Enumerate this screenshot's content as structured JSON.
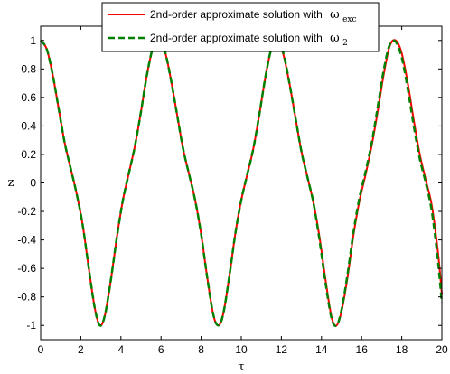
{
  "chart_data": {
    "type": "line",
    "title": "",
    "xlabel": "τ",
    "ylabel": "z",
    "xlim": [
      0,
      20
    ],
    "ylim": [
      -1.1,
      1.1
    ],
    "xticks": [
      "0",
      "2",
      "4",
      "6",
      "8",
      "10",
      "12",
      "14",
      "16",
      "18",
      "20"
    ],
    "yticks": [
      "-1",
      "-0.8",
      "-0.6",
      "-0.4",
      "-0.2",
      "0",
      "0.2",
      "0.4",
      "0.6",
      "0.8",
      "1"
    ],
    "grid": false,
    "legend_position": "top-center",
    "series": [
      {
        "name": "2nd-order approximate solution with",
        "symbol": "ω",
        "subscript": "exc",
        "color": "#ff0000",
        "style": "solid",
        "x": [
          0,
          0.3,
          0.6,
          0.9,
          1.2,
          1.5,
          1.8,
          2.1,
          2.4,
          2.7,
          2.95,
          3.2,
          3.5,
          3.8,
          4.1,
          4.4,
          4.7,
          5.0,
          5.3,
          5.6,
          5.9,
          6.2,
          6.5,
          6.8,
          7.1,
          7.4,
          7.7,
          8.0,
          8.3,
          8.6,
          8.85,
          9.1,
          9.4,
          9.7,
          10.0,
          10.3,
          10.6,
          10.9,
          11.2,
          11.5,
          11.8,
          12.1,
          12.4,
          12.7,
          13.0,
          13.3,
          13.6,
          13.9,
          14.2,
          14.5,
          14.75,
          15.0,
          15.3,
          15.6,
          15.9,
          16.2,
          16.5,
          16.8,
          17.1,
          17.4,
          17.7,
          18.0,
          18.3,
          18.6,
          18.9,
          19.2,
          19.5,
          19.8,
          20.0
        ],
        "y": [
          1.0,
          0.94,
          0.76,
          0.52,
          0.28,
          0.1,
          -0.08,
          -0.3,
          -0.6,
          -0.88,
          -1.0,
          -0.93,
          -0.68,
          -0.38,
          -0.12,
          0.07,
          0.26,
          0.5,
          0.76,
          0.95,
          1.0,
          0.92,
          0.72,
          0.48,
          0.24,
          0.06,
          -0.12,
          -0.36,
          -0.66,
          -0.92,
          -1.0,
          -0.92,
          -0.66,
          -0.36,
          -0.12,
          0.06,
          0.24,
          0.48,
          0.74,
          0.94,
          1.0,
          0.9,
          0.7,
          0.46,
          0.22,
          0.04,
          -0.14,
          -0.38,
          -0.68,
          -0.94,
          -1.0,
          -0.9,
          -0.66,
          -0.36,
          -0.12,
          0.06,
          0.26,
          0.5,
          0.76,
          0.96,
          1.0,
          0.91,
          0.7,
          0.44,
          0.2,
          0.02,
          -0.16,
          -0.48,
          -0.78
        ]
      },
      {
        "name": "2nd-order approximate solution with",
        "symbol": "ω",
        "subscript": "2",
        "color": "#008000",
        "style": "dashed",
        "x": [
          0,
          0.3,
          0.6,
          0.9,
          1.2,
          1.5,
          1.8,
          2.1,
          2.4,
          2.7,
          2.95,
          3.2,
          3.5,
          3.8,
          4.1,
          4.4,
          4.7,
          5.0,
          5.3,
          5.6,
          5.9,
          6.2,
          6.5,
          6.8,
          7.1,
          7.4,
          7.7,
          8.0,
          8.3,
          8.6,
          8.85,
          9.1,
          9.4,
          9.7,
          10.0,
          10.3,
          10.6,
          10.9,
          11.2,
          11.5,
          11.8,
          12.1,
          12.4,
          12.7,
          13.0,
          13.3,
          13.6,
          13.9,
          14.2,
          14.5,
          14.75,
          15.0,
          15.3,
          15.6,
          15.9,
          16.2,
          16.5,
          16.8,
          17.1,
          17.4,
          17.7,
          18.0,
          18.3,
          18.6,
          18.9,
          19.2,
          19.5,
          19.8,
          20.0
        ],
        "y": [
          1.0,
          0.94,
          0.76,
          0.52,
          0.28,
          0.1,
          -0.08,
          -0.3,
          -0.6,
          -0.88,
          -1.0,
          -0.93,
          -0.68,
          -0.38,
          -0.12,
          0.07,
          0.26,
          0.5,
          0.76,
          0.95,
          1.0,
          0.92,
          0.72,
          0.48,
          0.24,
          0.06,
          -0.12,
          -0.36,
          -0.66,
          -0.92,
          -1.0,
          -0.92,
          -0.66,
          -0.36,
          -0.12,
          0.06,
          0.24,
          0.48,
          0.74,
          0.94,
          1.0,
          0.91,
          0.7,
          0.46,
          0.22,
          0.04,
          -0.14,
          -0.4,
          -0.7,
          -0.95,
          -1.0,
          -0.89,
          -0.64,
          -0.34,
          -0.1,
          0.08,
          0.28,
          0.53,
          0.79,
          0.97,
          0.99,
          0.88,
          0.66,
          0.4,
          0.17,
          0.0,
          -0.2,
          -0.54,
          -0.84
        ]
      }
    ]
  }
}
